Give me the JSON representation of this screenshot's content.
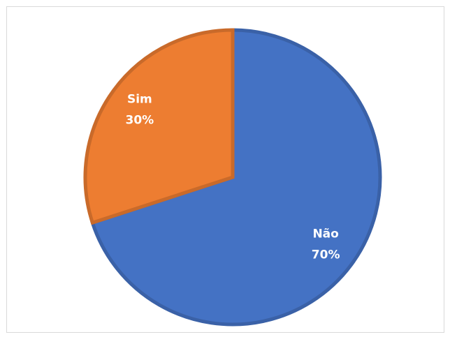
{
  "chart_data": {
    "type": "pie",
    "categories": [
      "Não",
      "Sim"
    ],
    "values": [
      70,
      30
    ],
    "value_labels": [
      "70%",
      "30%"
    ],
    "colors": [
      "#4472c4",
      "#ed7d31"
    ],
    "start_angle": 0,
    "direction": "clockwise"
  }
}
